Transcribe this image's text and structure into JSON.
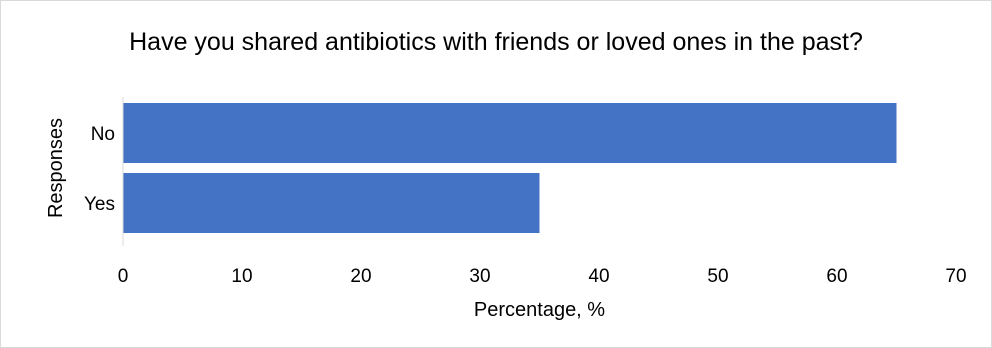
{
  "chart_data": {
    "type": "bar",
    "orientation": "horizontal",
    "title": "Have you shared antibiotics with friends or loved ones in the past?",
    "xlabel": "Percentage, %",
    "ylabel": "Responses",
    "categories": [
      "No",
      "Yes"
    ],
    "values": [
      65,
      35
    ],
    "xlim": [
      0,
      70
    ],
    "xticks": [
      "0",
      "10",
      "20",
      "30",
      "40",
      "50",
      "60",
      "70"
    ],
    "grid": false,
    "legend": "none",
    "bar_color": "#4472C4"
  }
}
